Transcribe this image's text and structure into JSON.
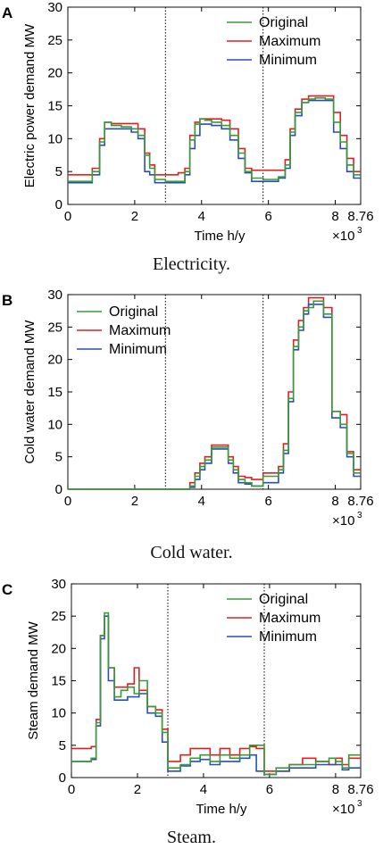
{
  "colors": {
    "original": "#3a9a3a",
    "maximum": "#e02020",
    "minimum": "#2a4fb0",
    "axis": "#111111"
  },
  "panels": [
    {
      "letter": "A",
      "caption": "Electricity.",
      "chart_data": {
        "type": "line",
        "step": true,
        "ylabel": "Electric power demand  MW",
        "xlabel": "Time  h/y",
        "x_multiplier": "×10",
        "x_multiplier_exp": "3",
        "xlim": [
          0,
          8.76
        ],
        "ylim": [
          0,
          30
        ],
        "xticks": [
          0,
          2,
          4,
          6,
          8,
          8.76
        ],
        "xtick_labels": [
          "0",
          "2",
          "4",
          "6",
          "8",
          "8.76"
        ],
        "yticks": [
          0,
          5,
          10,
          15,
          20,
          25,
          30
        ],
        "ytick_labels": [
          "0",
          "5",
          "10",
          "15",
          "20",
          "25",
          "30"
        ],
        "vlines": [
          2.92,
          5.84
        ],
        "legend": "top-right",
        "x": [
          0,
          0.73,
          0.95,
          1.1,
          1.3,
          1.6,
          1.9,
          2.1,
          2.3,
          2.45,
          2.6,
          2.92,
          3.3,
          3.5,
          3.65,
          3.8,
          3.95,
          4.1,
          4.3,
          4.6,
          4.85,
          5.1,
          5.3,
          5.5,
          5.84,
          6.3,
          6.5,
          6.65,
          6.8,
          7.0,
          7.2,
          7.4,
          7.7,
          7.95,
          8.15,
          8.35,
          8.55,
          8.76
        ],
        "series": [
          {
            "name": "Original",
            "values": [
              3.5,
              5.0,
              9.5,
              12.5,
              12.0,
              11.8,
              11.5,
              10.5,
              7.5,
              5.5,
              3.8,
              3.5,
              3.5,
              5.0,
              9.8,
              12.2,
              13.0,
              12.8,
              12.5,
              12.0,
              10.5,
              7.8,
              5.0,
              4.0,
              3.8,
              4.2,
              6.0,
              11.0,
              14.0,
              15.5,
              16.0,
              16.2,
              16.0,
              12.5,
              9.5,
              6.0,
              4.5,
              4.5
            ]
          },
          {
            "name": "Maximum",
            "values": [
              4.5,
              5.5,
              10.0,
              12.5,
              12.3,
              12.3,
              12.3,
              11.5,
              7.8,
              6.0,
              4.5,
              4.5,
              4.8,
              5.5,
              10.5,
              12.5,
              13.0,
              13.0,
              13.0,
              12.8,
              11.5,
              8.5,
              5.5,
              5.2,
              5.2,
              5.2,
              6.8,
              11.5,
              14.5,
              16.0,
              16.5,
              16.5,
              16.5,
              14.0,
              10.5,
              7.0,
              5.0,
              5.0
            ]
          },
          {
            "name": "Minimum",
            "values": [
              3.3,
              4.5,
              9.0,
              11.5,
              11.5,
              11.5,
              11.0,
              10.0,
              5.0,
              4.5,
              3.3,
              3.3,
              3.3,
              4.5,
              8.5,
              10.5,
              12.2,
              12.2,
              12.0,
              11.5,
              9.8,
              7.0,
              4.8,
              3.5,
              3.5,
              4.0,
              5.5,
              10.5,
              13.5,
              15.5,
              15.8,
              15.8,
              15.8,
              11.0,
              8.5,
              5.0,
              4.0,
              4.0
            ]
          }
        ]
      }
    },
    {
      "letter": "B",
      "caption": "Cold water.",
      "chart_data": {
        "type": "line",
        "step": true,
        "ylabel": "Cold water demand  MW",
        "xlabel": "",
        "x_multiplier": "×10",
        "x_multiplier_exp": "3",
        "xlim": [
          0,
          8.76
        ],
        "ylim": [
          0,
          30
        ],
        "xticks": [
          0,
          2,
          4,
          6,
          8,
          8.76
        ],
        "xtick_labels": [
          "0",
          "2",
          "4",
          "6",
          "8",
          "8.76"
        ],
        "yticks": [
          0,
          5,
          10,
          15,
          20,
          25,
          30
        ],
        "ytick_labels": [
          "0",
          "5",
          "10",
          "15",
          "20",
          "25",
          "30"
        ],
        "vlines": [
          2.92,
          5.84
        ],
        "legend": "top-left",
        "x": [
          0,
          3.65,
          3.8,
          3.95,
          4.1,
          4.3,
          4.6,
          4.8,
          4.95,
          5.1,
          5.3,
          5.5,
          5.84,
          6.3,
          6.45,
          6.6,
          6.75,
          6.9,
          7.05,
          7.2,
          7.35,
          7.65,
          7.9,
          8.15,
          8.35,
          8.55,
          8.76
        ],
        "series": [
          {
            "name": "Original",
            "values": [
              0,
              0.5,
              2.0,
              3.5,
              4.5,
              6.5,
              6.5,
              4.5,
              3.0,
              1.5,
              1.0,
              0.5,
              2.0,
              3.0,
              6.0,
              14.0,
              22.0,
              25.0,
              27.5,
              28.0,
              29.0,
              27.0,
              12.0,
              10.0,
              5.5,
              2.5,
              2.5
            ]
          },
          {
            "name": "Maximum",
            "values": [
              0,
              1.0,
              2.5,
              4.0,
              5.0,
              6.8,
              6.8,
              5.0,
              3.5,
              2.0,
              1.8,
              1.5,
              2.5,
              3.5,
              7.0,
              15.0,
              23.0,
              26.0,
              28.0,
              29.5,
              29.5,
              28.0,
              12.0,
              11.5,
              5.8,
              3.0,
              3.0
            ]
          },
          {
            "name": "Minimum",
            "values": [
              0,
              0.3,
              1.5,
              3.0,
              4.0,
              6.2,
              6.2,
              4.0,
              2.5,
              1.0,
              0.8,
              0.5,
              1.0,
              2.5,
              5.5,
              13.5,
              21.5,
              24.5,
              27.0,
              28.5,
              28.5,
              26.5,
              11.0,
              9.5,
              5.0,
              2.0,
              2.0
            ]
          }
        ]
      }
    },
    {
      "letter": "C",
      "caption": "Steam.",
      "chart_data": {
        "type": "line",
        "step": true,
        "ylabel": "Steam demand  MW",
        "xlabel": "Time  h/y",
        "x_multiplier": "×10",
        "x_multiplier_exp": "3",
        "xlim": [
          0,
          8.76
        ],
        "ylim": [
          0,
          30
        ],
        "xticks": [
          0,
          2,
          4,
          6,
          8,
          8.76
        ],
        "xtick_labels": [
          "0",
          "2",
          "4",
          "6",
          "8",
          "8.76"
        ],
        "yticks": [
          0,
          5,
          10,
          15,
          20,
          25,
          30
        ],
        "ytick_labels": [
          "0",
          "5",
          "10",
          "15",
          "20",
          "25",
          "30"
        ],
        "vlines": [
          2.92,
          5.84
        ],
        "legend": "top-right",
        "x": [
          0,
          0.6,
          0.75,
          0.88,
          1.0,
          1.12,
          1.3,
          1.5,
          1.7,
          1.9,
          2.05,
          2.3,
          2.55,
          2.75,
          2.92,
          3.3,
          3.6,
          3.9,
          4.2,
          4.5,
          4.8,
          5.1,
          5.4,
          5.6,
          5.84,
          6.2,
          6.6,
          7.0,
          7.4,
          7.8,
          8.0,
          8.2,
          8.4,
          8.55,
          8.76
        ],
        "series": [
          {
            "name": "Original",
            "values": [
              2.5,
              3.0,
              8.5,
              22.0,
              25.5,
              17.0,
              12.5,
              13.5,
              14.0,
              13.0,
              15.0,
              11.0,
              10.0,
              7.0,
              1.5,
              2.0,
              3.0,
              3.5,
              2.5,
              3.5,
              3.0,
              3.5,
              5.0,
              5.0,
              0.5,
              1.5,
              2.0,
              2.0,
              2.5,
              3.0,
              2.5,
              1.5,
              3.5,
              3.5,
              3.5
            ]
          },
          {
            "name": "Maximum",
            "values": [
              4.5,
              4.8,
              9.0,
              22.0,
              25.0,
              17.0,
              14.0,
              14.0,
              14.5,
              17.0,
              13.5,
              11.0,
              10.5,
              7.5,
              2.5,
              3.5,
              4.5,
              4.5,
              3.5,
              4.5,
              3.5,
              4.5,
              4.8,
              4.5,
              1.0,
              1.0,
              2.0,
              3.0,
              2.5,
              2.0,
              3.0,
              2.0,
              3.0,
              3.0,
              3.0
            ]
          },
          {
            "name": "Minimum",
            "values": [
              2.5,
              2.8,
              8.0,
              21.5,
              25.0,
              15.0,
              12.0,
              12.0,
              12.5,
              12.5,
              13.0,
              10.0,
              9.5,
              5.5,
              1.0,
              1.8,
              2.5,
              2.8,
              2.0,
              2.5,
              2.5,
              3.0,
              3.5,
              1.0,
              0.5,
              1.0,
              1.5,
              1.5,
              2.0,
              2.0,
              2.0,
              1.2,
              1.5,
              1.5,
              1.5
            ]
          }
        ]
      }
    }
  ]
}
